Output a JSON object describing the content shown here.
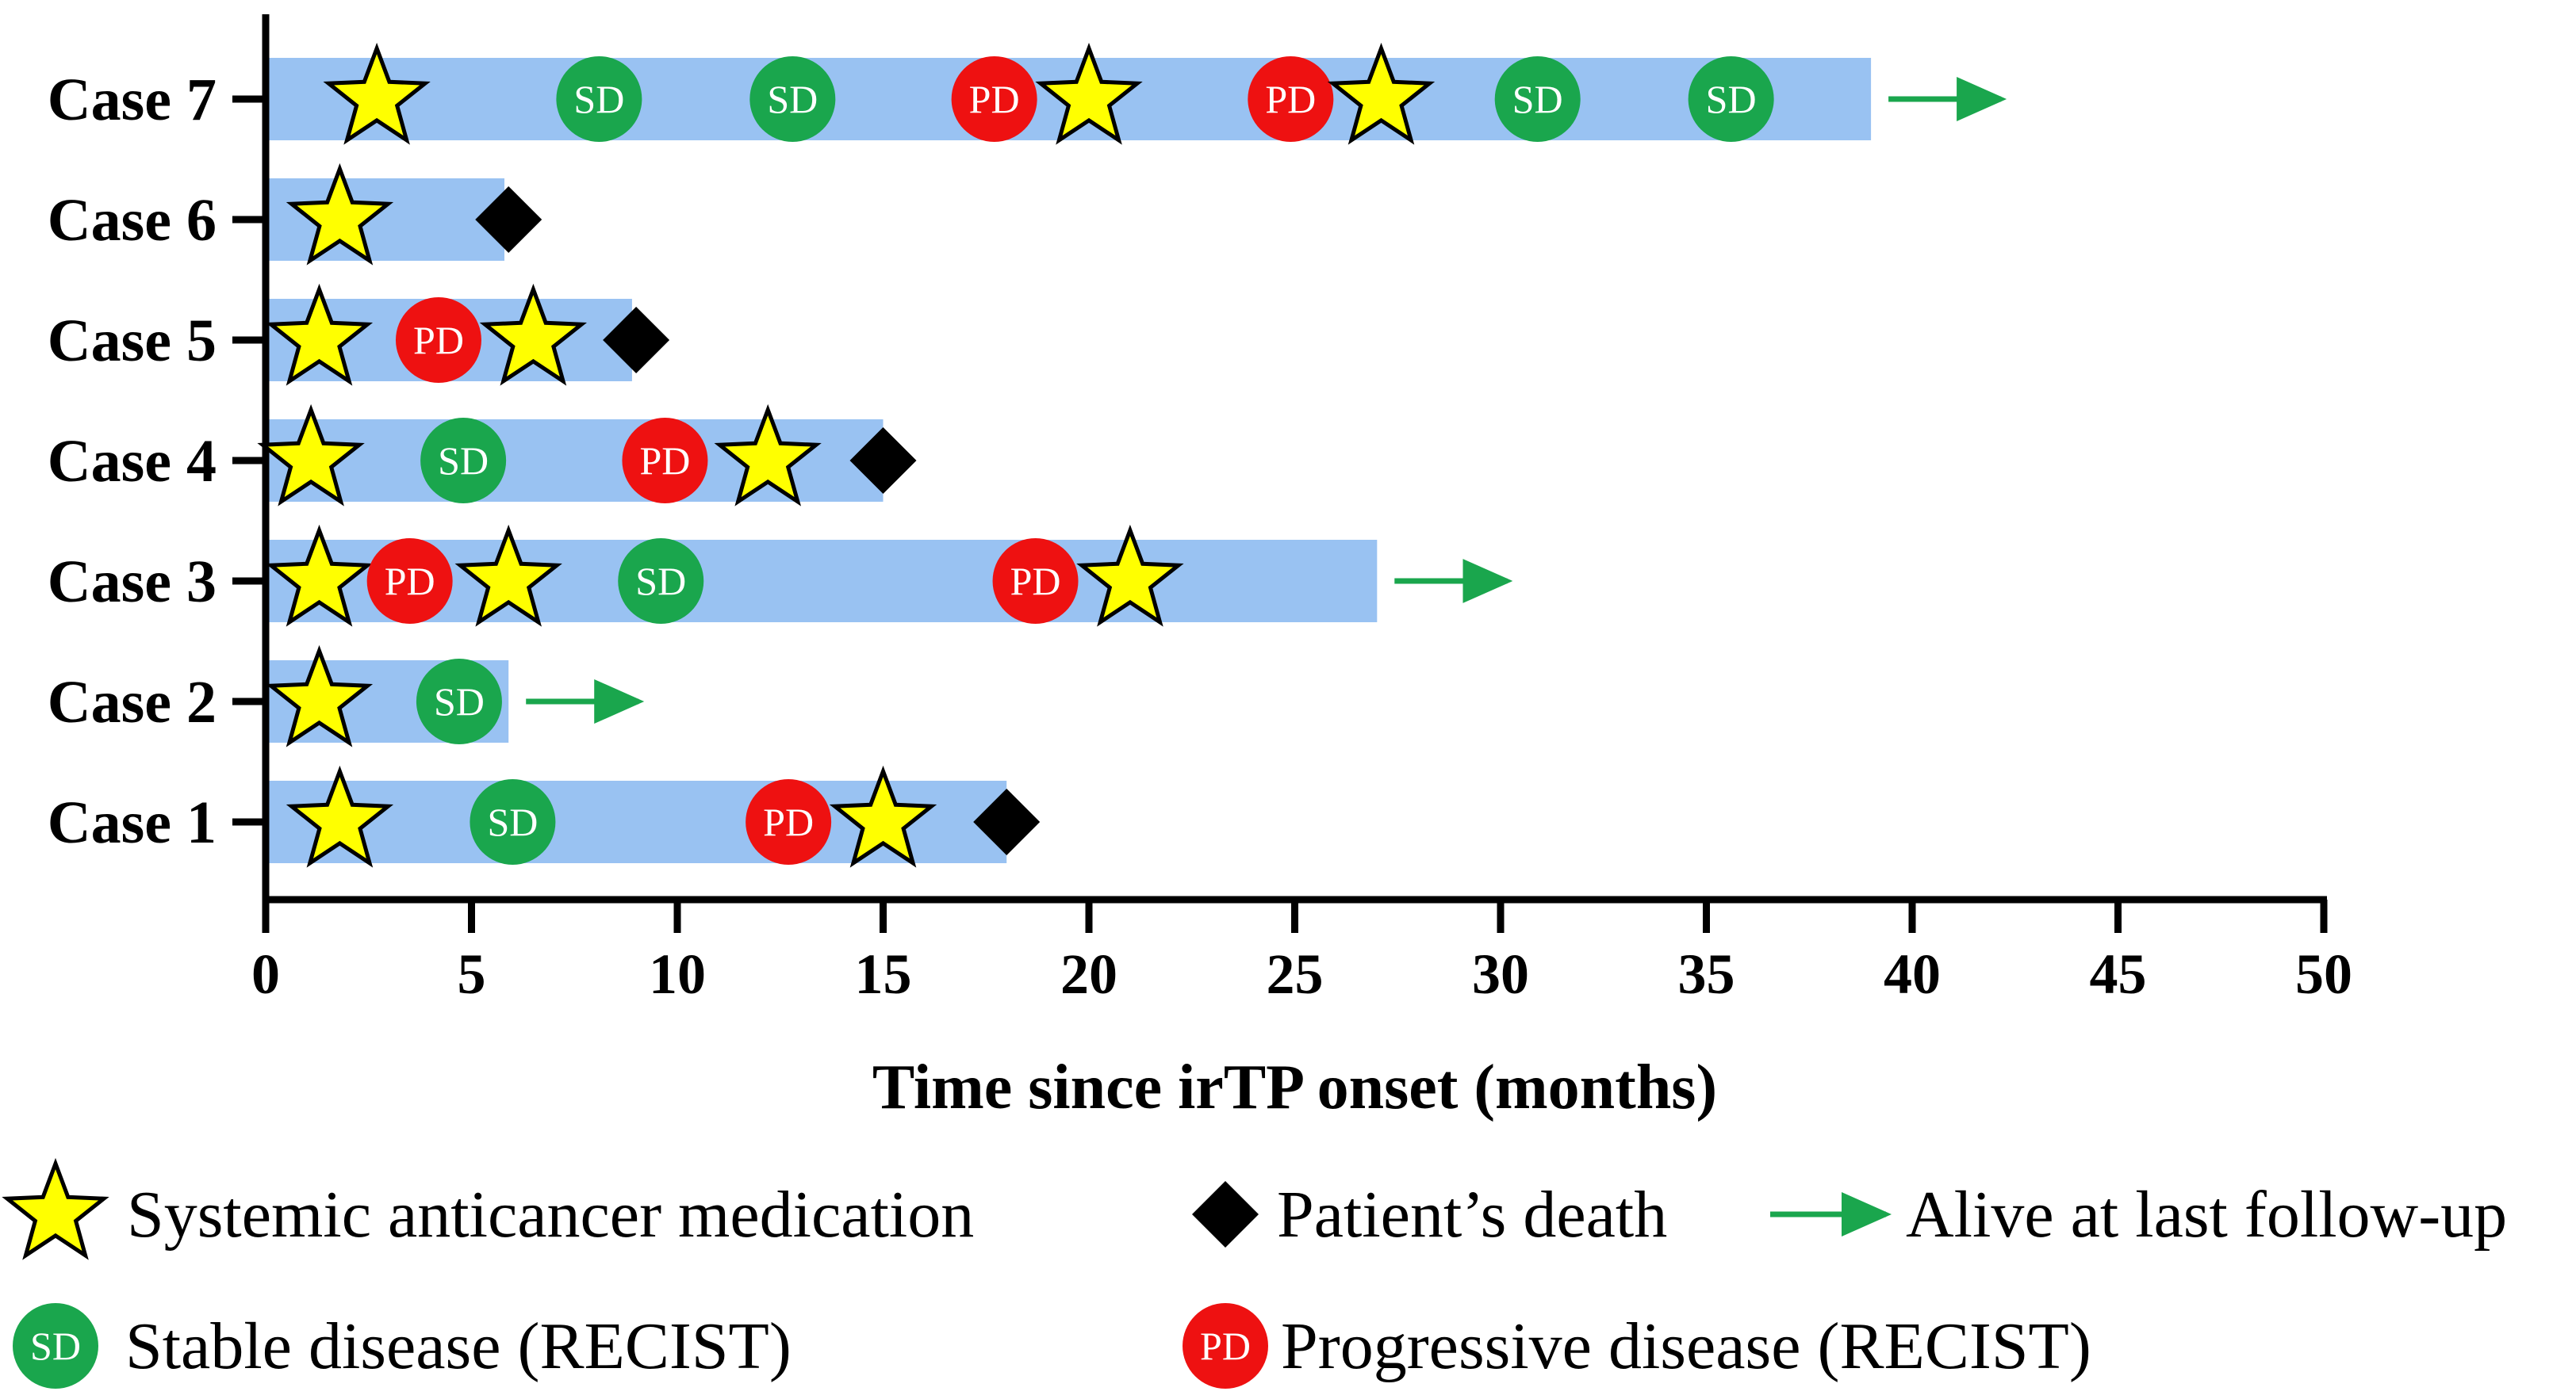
{
  "chart_data": {
    "type": "swimmer",
    "xlabel": "Time since irTP onset (months)",
    "xlim": [
      0,
      50
    ],
    "xticks": [
      0,
      5,
      10,
      15,
      20,
      25,
      30,
      35,
      40,
      45,
      50
    ],
    "grid": false,
    "legend_position": "bottom",
    "colors": {
      "bar": "#99c2f2",
      "star": "#ffff00",
      "sd": "#1aa64d",
      "pd": "#ee1111",
      "death": "#000000",
      "arrow": "#1aa64d"
    },
    "cases": [
      {
        "label": "Case 7",
        "duration": 39,
        "alive": true,
        "events": [
          {
            "type": "star",
            "x": 2.7
          },
          {
            "type": "sd",
            "x": 8.1
          },
          {
            "type": "sd",
            "x": 12.8
          },
          {
            "type": "pd",
            "x": 17.7
          },
          {
            "type": "star",
            "x": 20.0
          },
          {
            "type": "pd",
            "x": 24.9
          },
          {
            "type": "star",
            "x": 27.1
          },
          {
            "type": "sd",
            "x": 30.9
          },
          {
            "type": "sd",
            "x": 35.6
          }
        ]
      },
      {
        "label": "Case 6",
        "duration": 5.8,
        "alive": false,
        "events": [
          {
            "type": "star",
            "x": 1.8
          },
          {
            "type": "death",
            "x": 5.9
          }
        ]
      },
      {
        "label": "Case 5",
        "duration": 8.9,
        "alive": false,
        "events": [
          {
            "type": "star",
            "x": 1.3
          },
          {
            "type": "pd",
            "x": 4.2
          },
          {
            "type": "star",
            "x": 6.5
          },
          {
            "type": "death",
            "x": 9.0
          }
        ]
      },
      {
        "label": "Case 4",
        "duration": 15.0,
        "alive": false,
        "events": [
          {
            "type": "star",
            "x": 1.1
          },
          {
            "type": "sd",
            "x": 4.8
          },
          {
            "type": "pd",
            "x": 9.7
          },
          {
            "type": "star",
            "x": 12.2
          },
          {
            "type": "death",
            "x": 15.0
          }
        ]
      },
      {
        "label": "Case 3",
        "duration": 27.0,
        "alive": true,
        "events": [
          {
            "type": "star",
            "x": 1.3
          },
          {
            "type": "pd",
            "x": 3.5
          },
          {
            "type": "star",
            "x": 5.9
          },
          {
            "type": "sd",
            "x": 9.6
          },
          {
            "type": "pd",
            "x": 18.7
          },
          {
            "type": "star",
            "x": 21.0
          }
        ]
      },
      {
        "label": "Case 2",
        "duration": 5.9,
        "alive": true,
        "events": [
          {
            "type": "star",
            "x": 1.3
          },
          {
            "type": "sd",
            "x": 4.7
          }
        ]
      },
      {
        "label": "Case 1",
        "duration": 18.0,
        "alive": false,
        "events": [
          {
            "type": "star",
            "x": 1.8
          },
          {
            "type": "sd",
            "x": 6.0
          },
          {
            "type": "pd",
            "x": 12.7
          },
          {
            "type": "star",
            "x": 15.0
          },
          {
            "type": "death",
            "x": 18.0
          }
        ]
      }
    ],
    "marker_labels": {
      "sd": "SD",
      "pd": "PD"
    },
    "legend": {
      "star": "Systemic anticancer medication",
      "death": "Patient’s death",
      "alive": "Alive at last follow-up",
      "sd": "Stable disease (RECIST)",
      "pd": "Progressive disease (RECIST)"
    }
  }
}
